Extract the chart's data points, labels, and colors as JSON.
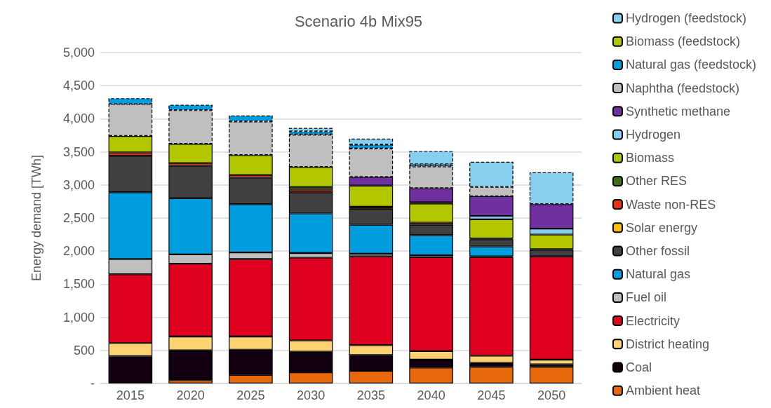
{
  "chart_data": {
    "type": "bar",
    "stacked": true,
    "title": "Scenario 4b Mix95",
    "ylabel": "Energy demand [TWh]",
    "categories": [
      "2015",
      "2020",
      "2025",
      "2030",
      "2035",
      "2040",
      "2045",
      "2050"
    ],
    "ylim": [
      0,
      5000
    ],
    "yticks": [
      {
        "value": 0,
        "label": "-"
      },
      {
        "value": 500,
        "label": "500"
      },
      {
        "value": 1000,
        "label": "1,000"
      },
      {
        "value": 1500,
        "label": "1,500"
      },
      {
        "value": 2000,
        "label": "2,000"
      },
      {
        "value": 2500,
        "label": "2,500"
      },
      {
        "value": 3000,
        "label": "3,000"
      },
      {
        "value": 3500,
        "label": "3,500"
      },
      {
        "value": 4000,
        "label": "4,000"
      },
      {
        "value": 4500,
        "label": "4,500"
      },
      {
        "value": 5000,
        "label": "5,000"
      }
    ],
    "grid": "y",
    "legend": "right",
    "series": [
      {
        "name": "Ambient heat",
        "color": "#e8690c",
        "values": [
          0,
          50,
          130,
          170,
          190,
          240,
          250,
          250
        ]
      },
      {
        "name": "Coal",
        "color": "#120011",
        "values": [
          410,
          450,
          380,
          310,
          240,
          120,
          60,
          40
        ]
      },
      {
        "name": "District heating",
        "color": "#fcd272",
        "values": [
          200,
          210,
          200,
          170,
          150,
          130,
          110,
          70
        ]
      },
      {
        "name": "Electricity",
        "color": "#e0001f",
        "values": [
          1040,
          1100,
          1170,
          1250,
          1340,
          1420,
          1490,
          1560
        ]
      },
      {
        "name": "Fuel oil",
        "color": "#bfbfbf",
        "values": [
          230,
          140,
          100,
          70,
          40,
          30,
          10,
          0
        ]
      },
      {
        "name": "Natural gas",
        "color": "#009edf",
        "values": [
          1010,
          850,
          730,
          600,
          440,
          300,
          150,
          0
        ]
      },
      {
        "name": "Other fossil",
        "color": "#404040",
        "values": [
          550,
          490,
          400,
          320,
          240,
          160,
          110,
          100
        ]
      },
      {
        "name": "Solar energy",
        "color": "#ffc000",
        "values": [
          0,
          0,
          0,
          0,
          0,
          0,
          0,
          0
        ]
      },
      {
        "name": "Waste non-RES",
        "color": "#e63312",
        "values": [
          50,
          40,
          40,
          40,
          30,
          30,
          10,
          10
        ]
      },
      {
        "name": "Other RES",
        "color": "#3c6e14",
        "values": [
          0,
          0,
          0,
          40,
          0,
          0,
          0,
          0
        ]
      },
      {
        "name": "Biomass",
        "color": "#b3c700",
        "values": [
          250,
          290,
          300,
          300,
          320,
          290,
          290,
          220
        ]
      },
      {
        "name": "Hydrogen",
        "color": "#87cfef",
        "values": [
          0,
          0,
          0,
          0,
          0,
          20,
          50,
          90
        ]
      },
      {
        "name": "Synthetic methane",
        "color": "#7030a0",
        "values": [
          0,
          0,
          0,
          0,
          130,
          210,
          300,
          370
        ]
      },
      {
        "name": "Naphtha (feedstock)",
        "color": "#bfbfbf",
        "line_style": "dashed",
        "values": [
          480,
          510,
          510,
          490,
          430,
          330,
          140,
          0
        ]
      },
      {
        "name": "Natural gas (feedstock)",
        "color": "#009edf",
        "line_style": "dashed",
        "values": [
          90,
          80,
          90,
          50,
          60,
          30,
          0,
          0
        ]
      },
      {
        "name": "Biomass (feedstock)",
        "color": "#b3c700",
        "line_style": "dashed",
        "values": [
          0,
          0,
          0,
          0,
          0,
          0,
          0,
          0
        ]
      },
      {
        "name": "Hydrogen (feedstock)",
        "color": "#87cfef",
        "line_style": "dashed",
        "values": [
          0,
          0,
          0,
          50,
          90,
          200,
          380,
          480
        ]
      }
    ]
  }
}
